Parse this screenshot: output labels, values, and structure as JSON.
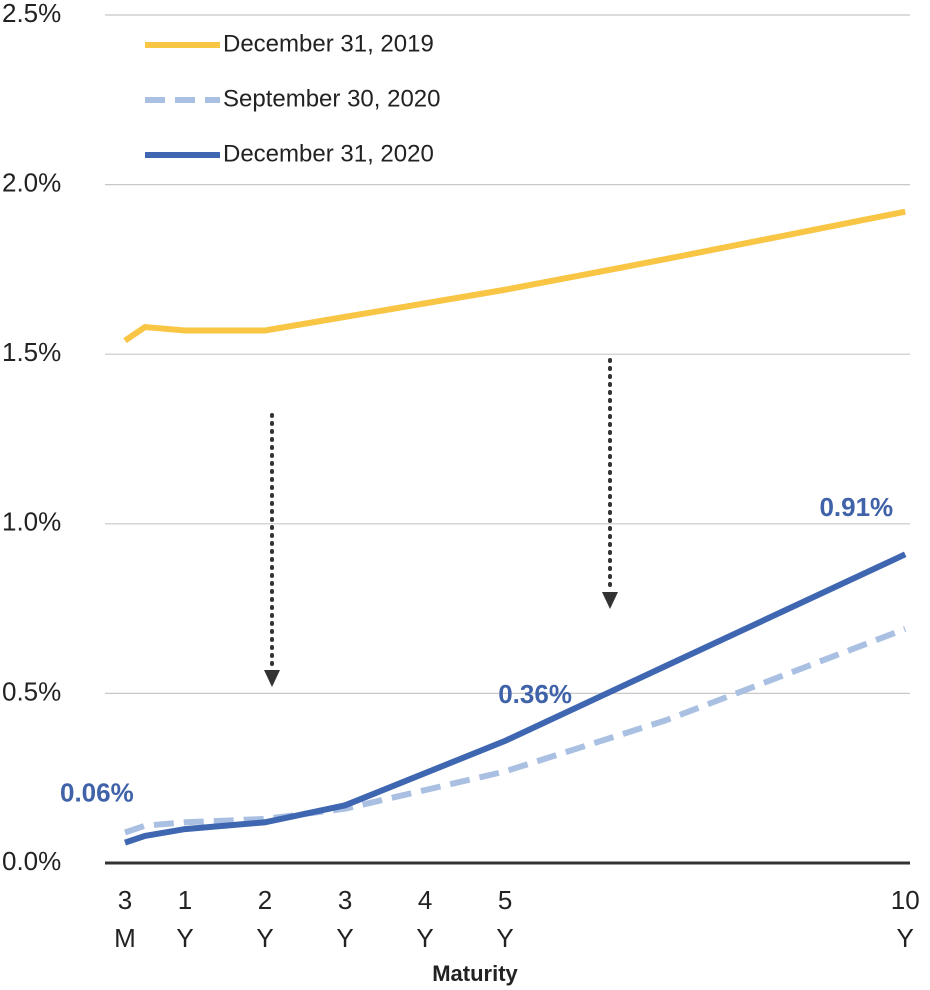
{
  "chart_data": {
    "type": "line",
    "x_label": "Maturity",
    "x": [
      0.25,
      0.5,
      1,
      2,
      3,
      5,
      7,
      10
    ],
    "xlim": [
      0,
      10.06
    ],
    "xticks": [
      {
        "value": 0.25,
        "label": [
          "3",
          "M"
        ]
      },
      {
        "value": 1,
        "label": [
          "1",
          "Y"
        ]
      },
      {
        "value": 2,
        "label": [
          "2",
          "Y"
        ]
      },
      {
        "value": 3,
        "label": [
          "3",
          "Y"
        ]
      },
      {
        "value": 4,
        "label": [
          "4",
          "Y"
        ]
      },
      {
        "value": 5,
        "label": [
          "5",
          "Y"
        ]
      },
      {
        "value": 10,
        "label": [
          "10",
          "Y"
        ]
      }
    ],
    "ylim": [
      0,
      2.5
    ],
    "yticks": [
      {
        "value": 0,
        "label": "0.0%"
      },
      {
        "value": 0.5,
        "label": "0.5%"
      },
      {
        "value": 1,
        "label": "1.0%"
      },
      {
        "value": 1.5,
        "label": "1.5%"
      },
      {
        "value": 2,
        "label": "2.0%"
      },
      {
        "value": 2.5,
        "label": "2.5%"
      }
    ],
    "grid": true,
    "legend": "upper left",
    "series": [
      {
        "name": "December 31, 2019",
        "color": "#f8c545",
        "dash": false,
        "values": [
          1.54,
          1.58,
          1.57,
          1.57,
          1.61,
          1.69,
          1.78,
          1.92
        ]
      },
      {
        "name": "September 30, 2020",
        "color": "#aac0e2",
        "dash": true,
        "values": [
          0.09,
          0.11,
          0.12,
          0.13,
          0.16,
          0.27,
          0.42,
          0.69
        ]
      },
      {
        "name": "December 31, 2020",
        "color": "#3f66b0",
        "dash": false,
        "values": [
          0.06,
          0.08,
          0.1,
          0.12,
          0.17,
          0.36,
          0.58,
          0.91
        ],
        "value_labels": [
          "0.06%",
          null,
          null,
          null,
          null,
          "0.36%",
          null,
          "0.91%"
        ]
      }
    ]
  }
}
